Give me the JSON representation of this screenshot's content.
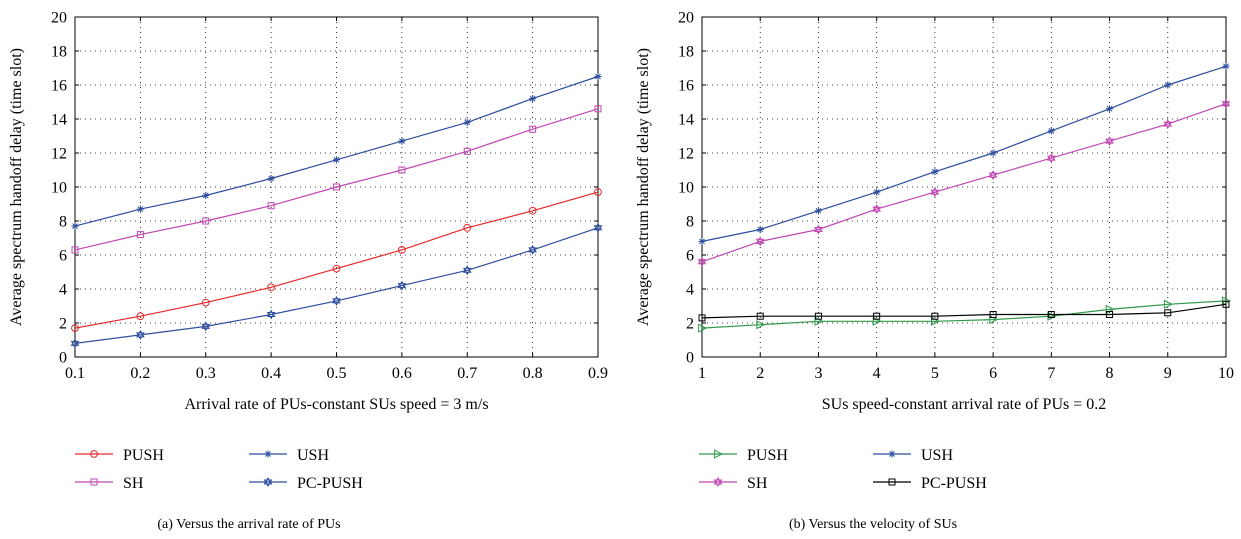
{
  "chart_data": [
    {
      "type": "line",
      "caption": "(a)  Versus the arrival rate of PUs",
      "xlabel": "Arrival rate of PUs-constant SUs speed = 3 m/s",
      "ylabel": "Average spectrum handoff delay (time slot)",
      "x": [
        0.1,
        0.2,
        0.3,
        0.4,
        0.5,
        0.6,
        0.7,
        0.8,
        0.9
      ],
      "xlim": [
        0.1,
        0.9
      ],
      "ylim": [
        0,
        20
      ],
      "xticks": [
        "0.1",
        "0.2",
        "0.3",
        "0.4",
        "0.5",
        "0.6",
        "0.7",
        "0.8",
        "0.9"
      ],
      "yticks": [
        "0",
        "2",
        "4",
        "6",
        "8",
        "10",
        "12",
        "14",
        "16",
        "18",
        "20"
      ],
      "grid": true,
      "legend_placement": "below",
      "series": [
        {
          "name": "PUSH",
          "color": "#e8282b",
          "marker": "circle",
          "values": [
            1.7,
            2.4,
            3.2,
            4.1,
            5.2,
            6.3,
            7.6,
            8.6,
            9.7
          ]
        },
        {
          "name": "USH",
          "color": "#2e4e9e",
          "marker": "star",
          "values": [
            7.7,
            8.7,
            9.5,
            10.5,
            11.6,
            12.7,
            13.8,
            15.2,
            16.5
          ]
        },
        {
          "name": "SH",
          "color": "#c147b3",
          "marker": "square",
          "values": [
            6.3,
            7.2,
            8.0,
            8.9,
            10.0,
            11.0,
            12.1,
            13.4,
            14.6
          ]
        },
        {
          "name": "PC-PUSH",
          "color": "#2e4e9e",
          "marker": "hexagram",
          "values": [
            0.8,
            1.3,
            1.8,
            2.5,
            3.3,
            4.2,
            5.1,
            6.3,
            7.6
          ]
        }
      ]
    },
    {
      "type": "line",
      "caption": "(b)  Versus the velocity of SUs",
      "xlabel": "SUs speed-constant arrival rate of PUs = 0.2",
      "ylabel": "Average spectrum handoff delay (time slot)",
      "x": [
        1,
        2,
        3,
        4,
        5,
        6,
        7,
        8,
        9,
        10
      ],
      "xlim": [
        1,
        10
      ],
      "ylim": [
        0,
        20
      ],
      "xticks": [
        "1",
        "2",
        "3",
        "4",
        "5",
        "6",
        "7",
        "8",
        "9",
        "10"
      ],
      "yticks": [
        "0",
        "2",
        "4",
        "6",
        "8",
        "10",
        "12",
        "14",
        "16",
        "18",
        "20"
      ],
      "grid": true,
      "legend_placement": "below",
      "series": [
        {
          "name": "PUSH",
          "color": "#2f9a4a",
          "marker": "triangle-right",
          "values": [
            1.7,
            1.9,
            2.1,
            2.1,
            2.1,
            2.2,
            2.4,
            2.8,
            3.1,
            3.3
          ]
        },
        {
          "name": "USH",
          "color": "#2e4e9e",
          "marker": "star",
          "values": [
            6.8,
            7.5,
            8.6,
            9.7,
            10.9,
            12.0,
            13.3,
            14.6,
            16.0,
            17.1
          ]
        },
        {
          "name": "SH",
          "color": "#c147b3",
          "marker": "hexagram",
          "values": [
            5.6,
            6.8,
            7.5,
            8.7,
            9.7,
            10.7,
            11.7,
            12.7,
            13.7,
            14.9
          ]
        },
        {
          "name": "PC-PUSH",
          "color": "#000000",
          "marker": "square",
          "values": [
            2.3,
            2.4,
            2.4,
            2.4,
            2.4,
            2.5,
            2.5,
            2.5,
            2.6,
            3.1
          ]
        }
      ]
    }
  ]
}
